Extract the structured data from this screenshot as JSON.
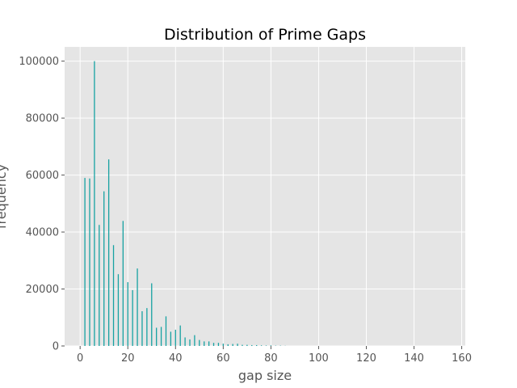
{
  "chart_data": {
    "type": "bar",
    "title": "Distribution of Prime Gaps",
    "xlabel": "gap size",
    "ylabel": "frequency",
    "xlim": [
      -6.5,
      161.5
    ],
    "ylim": [
      0,
      105000
    ],
    "xticks": [
      0,
      20,
      40,
      60,
      80,
      100,
      120,
      140,
      160
    ],
    "yticks": [
      0,
      20000,
      40000,
      60000,
      80000,
      100000
    ],
    "grid": true,
    "background": "#e5e5e5",
    "bar_color": "#17a2a2",
    "x": [
      2,
      4,
      6,
      8,
      10,
      12,
      14,
      16,
      18,
      20,
      22,
      24,
      26,
      28,
      30,
      32,
      34,
      36,
      38,
      40,
      42,
      44,
      46,
      48,
      50,
      52,
      54,
      56,
      58,
      60,
      62,
      64,
      66,
      68,
      70,
      72,
      74,
      76,
      78,
      80,
      82,
      84,
      86
    ],
    "values": [
      59000,
      58800,
      100000,
      42500,
      54300,
      65500,
      35400,
      25200,
      43900,
      22400,
      19600,
      27200,
      12200,
      13300,
      22000,
      6400,
      6700,
      10400,
      5000,
      5700,
      7200,
      3000,
      2300,
      3800,
      2100,
      1600,
      1600,
      1100,
      1100,
      800,
      600,
      700,
      800,
      400,
      400,
      300,
      300,
      200,
      150,
      200,
      100,
      100,
      50
    ]
  }
}
